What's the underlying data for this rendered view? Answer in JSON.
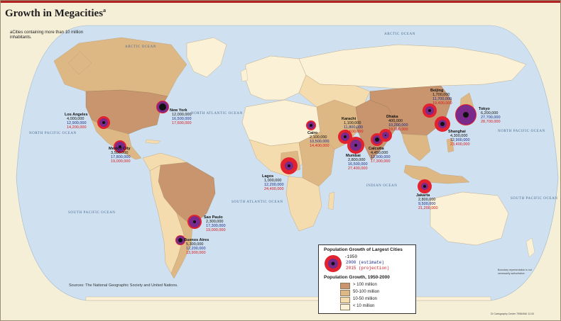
{
  "title": "Growth in Megacities",
  "title_sup": "a",
  "footnote": "aCities containing more than 10 million inhabitants.",
  "sources": "Sources: The National Geographic Society and United Nations.",
  "disclaimer": "Boundary representation is not necessarily authoritative.",
  "credit": "DI Cartography Center 759849AI 12-00",
  "oceans": [
    {
      "name": "ARCTIC OCEAN",
      "text": "ARCTIC OCEAN"
    },
    {
      "name": "ARCTIC OCEAN 2",
      "text": "ARCTIC OCEAN"
    },
    {
      "name": "NORTH ATLANTIC OCEAN",
      "text": "NORTH ATLANTIC OCEAN"
    },
    {
      "name": "NORTH PACIFIC OCEAN",
      "text": "NORTH PACIFIC OCEAN"
    },
    {
      "name": "NORTH PACIFIC OCEAN 2",
      "text": "NORTH PACIFIC OCEAN"
    },
    {
      "name": "SOUTH PACIFIC OCEAN",
      "text": "SOUTH PACIFIC OCEAN"
    },
    {
      "name": "SOUTH ATLANTIC OCEAN",
      "text": "SOUTH ATLANTIC OCEAN"
    },
    {
      "name": "INDIAN OCEAN",
      "text": "INDIAN OCEAN"
    },
    {
      "name": "SOUTH PACIFIC OCEAN 2",
      "text": "SOUTH PACIFIC OCEAN"
    }
  ],
  "cities": [
    {
      "name": "Los Angeles",
      "p1950": "4,000,000",
      "p2000": "12,900,000",
      "p2015": "14,200,000"
    },
    {
      "name": "New York",
      "p1950": "12,000,000",
      "p2000": "16,500,000",
      "p2015": "17,600,000"
    },
    {
      "name": "Mexico City",
      "p1950": "3,500,000",
      "p2000": "17,800,000",
      "p2015": "19,000,000"
    },
    {
      "name": "Sao Paulo",
      "p1950": "2,300,000",
      "p2000": "17,300,000",
      "p2015": "19,000,000"
    },
    {
      "name": "Buenos Aires",
      "p1950": "5,300,000",
      "p2000": "12,200,000",
      "p2015": "13,900,000"
    },
    {
      "name": "Lagos",
      "p1950": "1,000,000",
      "p2000": "12,200,000",
      "p2015": "24,400,000"
    },
    {
      "name": "Cairo",
      "p1950": "2,100,000",
      "p2000": "10,500,000",
      "p2015": "14,400,000"
    },
    {
      "name": "Karachi",
      "p1950": "1,100,000",
      "p2000": "11,800,000",
      "p2015": "20,600,000"
    },
    {
      "name": "Mumbai",
      "p1950": "2,800,000",
      "p2000": "16,500,000",
      "p2015": "27,400,000"
    },
    {
      "name": "Calcutta",
      "p1950": "4,450,000",
      "p2000": "12,900,000",
      "p2015": "17,300,000"
    },
    {
      "name": "Dhaka",
      "p1950": "400,000",
      "p2000": "10,200,000",
      "p2015": "19,000,000"
    },
    {
      "name": "Beijing",
      "p1950": "1,700,000",
      "p2000": "11,700,000",
      "p2015": "19,400,000"
    },
    {
      "name": "Shanghai",
      "p1950": "4,300,000",
      "p2000": "12,900,000",
      "p2015": "23,400,000"
    },
    {
      "name": "Tokyo",
      "p1950": "6,200,000",
      "p2000": "27,700,000",
      "p2015": "28,700,000"
    },
    {
      "name": "Jakarta",
      "p1950": "2,800,000",
      "p2000": "9,500,000",
      "p2015": "21,200,000"
    }
  ],
  "legend": {
    "title": "Population Growth of Largest Cities",
    "y1950": "1950",
    "y2000": "2000 (estimate)",
    "y2015": "2015 (projection)",
    "growth_title": "Population Growth, 1950-2000",
    "classes": [
      {
        "label": "> 100 million",
        "color": "#c8956e"
      },
      {
        "label": "50-100 million",
        "color": "#deb884"
      },
      {
        "label": "10-50 million",
        "color": "#f4dcae"
      },
      {
        "label": "< 10 million",
        "color": "#faf1d6"
      }
    ]
  },
  "colors": {
    "ocean": "#cfe1f0",
    "ring_2015": "#e2222e",
    "ring_2000": "#7a2a8a",
    "dot_1950": "#111111",
    "title_bar": "#b22222"
  }
}
